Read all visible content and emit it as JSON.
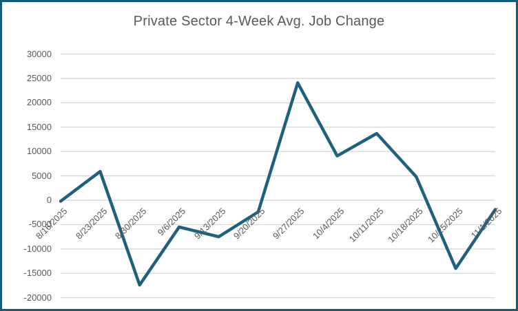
{
  "window": {
    "background": "#ffffff",
    "border_color": "#175a7c"
  },
  "chart_data": {
    "type": "line",
    "title": "Private Sector 4-Week Avg. Job Change",
    "categories": [
      "8/16/2025",
      "8/23/2025",
      "8/30/2025",
      "9/6/2025",
      "9/13/2025",
      "9/20/2025",
      "9/27/2025",
      "10/4/2025",
      "10/11/2025",
      "10/18/2025",
      "10/25/2025",
      "11/1/2025"
    ],
    "values": [
      -200,
      5900,
      -17400,
      -5500,
      -7500,
      -2400,
      24100,
      9100,
      13700,
      4800,
      -14000,
      -1900
    ],
    "xlabel": "",
    "ylabel": "",
    "ylim": [
      -20000,
      30000
    ],
    "ytick_step": 5000,
    "ytick_labels": [
      "30000",
      "25000",
      "20000",
      "15000",
      "10000",
      "5000",
      "0",
      "-5000",
      "-10000",
      "-15000",
      "-20000"
    ],
    "grid": true,
    "legend_position": "none",
    "x_label_rotation_deg": 45,
    "line_color": "#20607f",
    "gridline_color": "#d9d9d9",
    "text_color": "#595959",
    "title_color": "#595959"
  }
}
